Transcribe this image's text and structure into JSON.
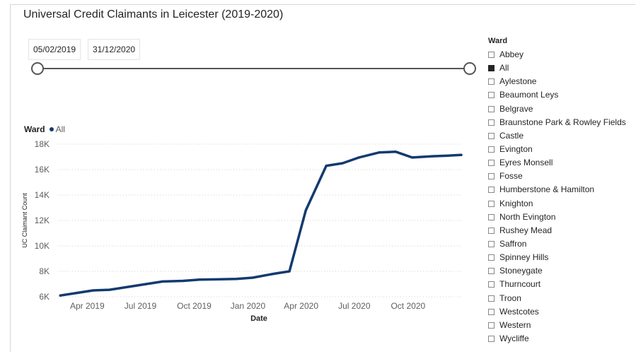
{
  "title": "Universal Credit Claimants in Leicester (2019-2020)",
  "date_filter": {
    "start": "05/02/2019",
    "end": "31/12/2020"
  },
  "legend": {
    "title": "Ward",
    "entry": "All"
  },
  "slicer": {
    "title": "Ward",
    "items": [
      {
        "label": "Abbey",
        "checked": false
      },
      {
        "label": "All",
        "checked": true
      },
      {
        "label": "Aylestone",
        "checked": false
      },
      {
        "label": "Beaumont Leys",
        "checked": false
      },
      {
        "label": "Belgrave",
        "checked": false
      },
      {
        "label": "Braunstone Park & Rowley Fields",
        "checked": false
      },
      {
        "label": "Castle",
        "checked": false
      },
      {
        "label": "Evington",
        "checked": false
      },
      {
        "label": "Eyres Monsell",
        "checked": false
      },
      {
        "label": "Fosse",
        "checked": false
      },
      {
        "label": "Humberstone & Hamilton",
        "checked": false
      },
      {
        "label": "Knighton",
        "checked": false
      },
      {
        "label": "North Evington",
        "checked": false
      },
      {
        "label": "Rushey Mead",
        "checked": false
      },
      {
        "label": "Saffron",
        "checked": false
      },
      {
        "label": "Spinney Hills",
        "checked": false
      },
      {
        "label": "Stoneygate",
        "checked": false
      },
      {
        "label": "Thurncourt",
        "checked": false
      },
      {
        "label": "Troon",
        "checked": false
      },
      {
        "label": "Westcotes",
        "checked": false
      },
      {
        "label": "Western",
        "checked": false
      },
      {
        "label": "Wycliffe",
        "checked": false
      }
    ]
  },
  "chart_data": {
    "type": "line",
    "title": "Universal Credit Claimants in Leicester (2019-2020)",
    "xlabel": "Date",
    "ylabel": "UC Claimant Count",
    "ylim": [
      6000,
      18000
    ],
    "yticks": [
      6000,
      8000,
      10000,
      12000,
      14000,
      16000,
      18000
    ],
    "ytick_labels": [
      "6K",
      "8K",
      "10K",
      "12K",
      "14K",
      "16K",
      "18K"
    ],
    "xlim": [
      "2019-02-10",
      "2020-12-31"
    ],
    "xticks": [
      "2019-04-01",
      "2019-07-01",
      "2019-10-01",
      "2020-01-01",
      "2020-04-01",
      "2020-07-01",
      "2020-10-01"
    ],
    "xtick_labels": [
      "Apr 2019",
      "Jul 2019",
      "Oct 2019",
      "Jan 2020",
      "Apr 2020",
      "Jul 2020",
      "Oct 2020"
    ],
    "grid": true,
    "color": "#123a6f",
    "series": [
      {
        "name": "All",
        "x": [
          "2019-02-14",
          "2019-03-14",
          "2019-04-11",
          "2019-05-09",
          "2019-06-13",
          "2019-07-11",
          "2019-08-08",
          "2019-09-12",
          "2019-10-10",
          "2019-11-14",
          "2019-12-12",
          "2020-01-09",
          "2020-02-13",
          "2020-03-12",
          "2020-04-09",
          "2020-05-14",
          "2020-06-11",
          "2020-07-09",
          "2020-08-13",
          "2020-09-10",
          "2020-10-08",
          "2020-11-12",
          "2020-12-10",
          "2020-12-31"
        ],
        "y": [
          6100,
          6300,
          6500,
          6550,
          6800,
          7000,
          7200,
          7250,
          7350,
          7380,
          7400,
          7500,
          7800,
          8000,
          12800,
          16300,
          16500,
          16950,
          17350,
          17400,
          16950,
          17050,
          17100,
          17150
        ]
      }
    ]
  }
}
